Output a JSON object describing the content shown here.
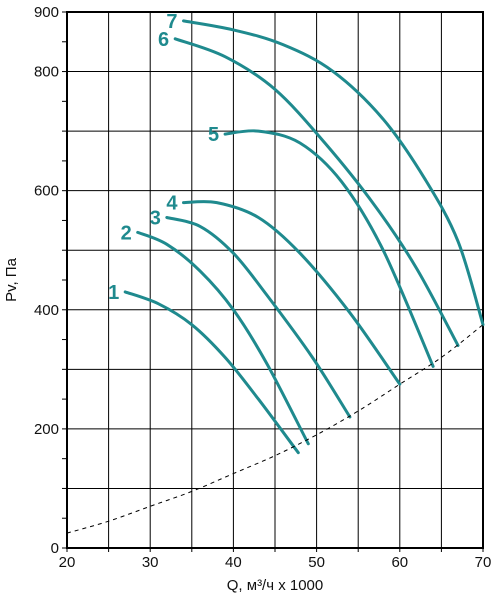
{
  "chart_data": {
    "type": "line",
    "xlabel": "Q, м³/ч x 1000",
    "ylabel": "Pv, Па",
    "xlim": [
      20,
      70
    ],
    "ylim": [
      0,
      900
    ],
    "x_ticks": [
      20,
      30,
      40,
      50,
      60,
      70
    ],
    "y_ticks": [
      0,
      200,
      400,
      600,
      800,
      900
    ],
    "x_tick_labels": [
      "20",
      "30",
      "40",
      "50",
      "60",
      "70"
    ],
    "y_tick_labels": [
      "0",
      "200",
      "400",
      "600",
      "800",
      "900"
    ],
    "grid": true,
    "curve_color": "#1f8a8e",
    "series": [
      {
        "name": "1",
        "x": [
          27,
          31,
          35,
          39,
          43,
          47.8
        ],
        "y": [
          430,
          410,
          375,
          320,
          250,
          160
        ]
      },
      {
        "name": "2",
        "x": [
          28.5,
          32,
          36,
          40,
          44,
          49
        ],
        "y": [
          530,
          510,
          465,
          400,
          310,
          175
        ]
      },
      {
        "name": "3",
        "x": [
          32,
          36,
          40,
          44,
          49.5,
          54
        ],
        "y": [
          555,
          540,
          495,
          425,
          320,
          220
        ]
      },
      {
        "name": "4",
        "x": [
          34,
          38,
          43,
          48,
          54,
          60
        ],
        "y": [
          580,
          580,
          555,
          495,
          395,
          275
        ]
      },
      {
        "name": "5",
        "x": [
          39,
          43,
          48,
          53,
          58,
          64
        ],
        "y": [
          695,
          700,
          680,
          615,
          500,
          305
        ]
      },
      {
        "name": "6",
        "x": [
          33,
          39,
          45,
          51,
          57,
          62,
          67
        ],
        "y": [
          855,
          825,
          770,
          680,
          575,
          470,
          340
        ]
      },
      {
        "name": "7",
        "x": [
          34,
          40,
          46,
          52,
          58,
          63,
          67,
          70
        ],
        "y": [
          885,
          870,
          845,
          800,
          720,
          620,
          515,
          375
        ]
      },
      {
        "name": "",
        "style": "dashed",
        "x": [
          20,
          25,
          30,
          35,
          40,
          45,
          50,
          55,
          60,
          65,
          70
        ],
        "y": [
          25,
          45,
          70,
          95,
          125,
          155,
          190,
          230,
          275,
          320,
          375
        ]
      }
    ]
  }
}
